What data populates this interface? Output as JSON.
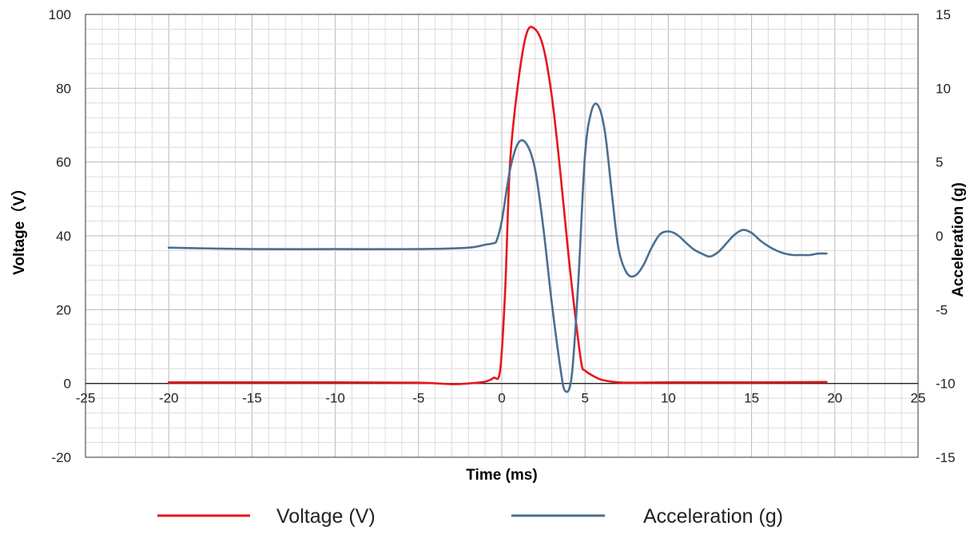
{
  "chart_data": {
    "type": "line",
    "title": "",
    "xlabel": "Time  (ms)",
    "ylabel": "Voltage（V）",
    "y2label": "Acceleration (g)",
    "xlim": [
      -25,
      25
    ],
    "ylim": [
      -20,
      100
    ],
    "y2lim": [
      -15,
      15
    ],
    "x_ticks": [
      -25,
      -20,
      -15,
      -10,
      -5,
      0,
      5,
      10,
      15,
      20,
      25
    ],
    "y_ticks": [
      -20,
      0,
      20,
      40,
      60,
      80,
      100
    ],
    "y2_ticks": [
      -15,
      -10,
      -5,
      0,
      5,
      10,
      15
    ],
    "grid": true,
    "legend_position": "bottom",
    "series": [
      {
        "name": "Voltage (V)",
        "axis": "left",
        "color": "#e8161b",
        "x": [
          -20,
          -15,
          -10,
          -5,
          -3,
          -2,
          -1,
          -0.5,
          -0.1,
          0.2,
          0.5,
          1.0,
          1.5,
          2.0,
          2.5,
          3.0,
          3.5,
          4.0,
          4.5,
          4.8,
          5.0,
          5.5,
          6.0,
          7.0,
          8.0,
          10,
          15,
          19.5
        ],
        "values": [
          0.3,
          0.3,
          0.3,
          0.2,
          -0.2,
          0,
          0.5,
          1.5,
          3.5,
          25,
          60,
          82,
          95,
          96,
          91,
          78,
          58,
          35,
          15,
          5,
          3.5,
          2.0,
          1.0,
          0.3,
          0.2,
          0.3,
          0.3,
          0.4
        ]
      },
      {
        "name": "Acceleration (g)",
        "axis": "right",
        "color": "#4a6f91",
        "x": [
          -20,
          -15,
          -10,
          -5,
          -2,
          -1,
          -0.5,
          -0.3,
          0,
          0.5,
          1.0,
          1.5,
          2.0,
          2.5,
          3.0,
          3.5,
          3.8,
          4.2,
          4.6,
          5.0,
          5.4,
          5.8,
          6.2,
          6.6,
          7.0,
          7.5,
          8.0,
          8.5,
          9.0,
          9.5,
          10.0,
          10.5,
          11.0,
          11.5,
          12.0,
          12.5,
          13.0,
          13.5,
          14.0,
          14.5,
          15.0,
          15.5,
          16.0,
          16.5,
          17.0,
          17.5,
          18.0,
          18.5,
          19.0,
          19.5
        ],
        "values": [
          -0.8,
          -0.9,
          -0.9,
          -0.9,
          -0.8,
          -0.6,
          -0.5,
          -0.3,
          1.0,
          4.5,
          6.3,
          6.2,
          4.5,
          0.5,
          -4.5,
          -8.8,
          -10.5,
          -9.5,
          -3.0,
          5.5,
          8.5,
          8.8,
          7.0,
          3.0,
          -0.8,
          -2.5,
          -2.7,
          -2.0,
          -0.8,
          0.1,
          0.3,
          0.1,
          -0.4,
          -0.9,
          -1.2,
          -1.4,
          -1.1,
          -0.5,
          0.1,
          0.4,
          0.2,
          -0.3,
          -0.7,
          -1.0,
          -1.2,
          -1.3,
          -1.3,
          -1.3,
          -1.2,
          -1.2
        ]
      }
    ]
  }
}
